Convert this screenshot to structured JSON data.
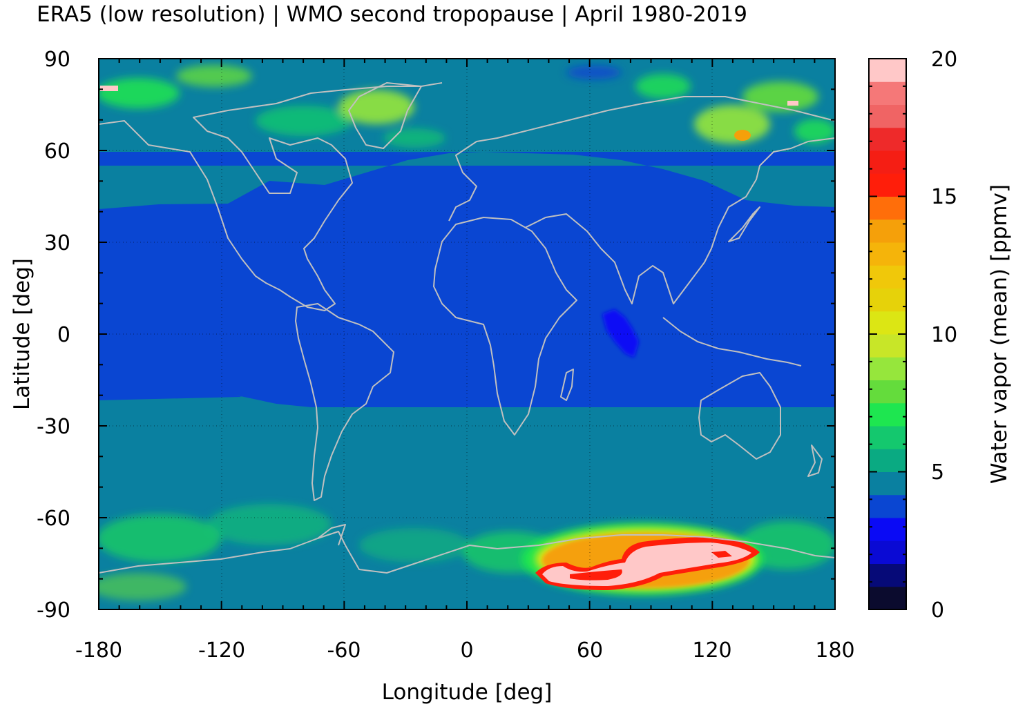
{
  "title": "ERA5 (low resolution) | WMO second tropopause | April 1980-2019",
  "x_axis": {
    "label": "Longitude [deg]",
    "range": [
      -180,
      180
    ],
    "ticks": [
      "-180",
      "-120",
      "-60",
      "0",
      "60",
      "120",
      "180"
    ]
  },
  "y_axis": {
    "label": "Latitude [deg]",
    "range": [
      -90,
      90
    ],
    "ticks": [
      "90",
      "60",
      "30",
      "0",
      "-30",
      "-60",
      "-90"
    ]
  },
  "colorbar": {
    "label": "Water vapor (mean) [ppmv]",
    "range": [
      0,
      20
    ],
    "ticks": [
      "20",
      "15",
      "10",
      "5",
      "0"
    ],
    "colors": [
      "#0b0b2e",
      "#060a78",
      "#0a0ad4",
      "#0a0af5",
      "#0a46d2",
      "#0a80a0",
      "#0aaa82",
      "#14c86e",
      "#1ee650",
      "#64dc3c",
      "#96e63c",
      "#c8e628",
      "#dce614",
      "#e6d20a",
      "#f0c80a",
      "#f5b40a",
      "#f5a00a",
      "#ff6e0a",
      "#ff1e0a",
      "#f51e14",
      "#ee2a2a",
      "#f06464",
      "#f57878",
      "#ffc8c8"
    ]
  },
  "map": {
    "grid": "dotted",
    "background_bands": [
      {
        "from_lat": 90,
        "to_lat": 45,
        "value_ppmv": 5,
        "color": "#0a80a0"
      },
      {
        "from_lat": 45,
        "to_lat": -30,
        "value_ppmv": 4,
        "color": "#0a46d2"
      },
      {
        "from_lat": -30,
        "to_lat": -90,
        "value_ppmv": 5,
        "color": "#0a80a0"
      }
    ],
    "features": [
      {
        "region": "Antarctic plateau 40E-150E",
        "max_ppmv": 20
      },
      {
        "region": "Arctic rim",
        "max_ppmv": 9
      },
      {
        "region": "Indian Ocean 70E-90E near equator",
        "min_ppmv": 3
      }
    ],
    "coastline_color": "#c0c0c0"
  }
}
